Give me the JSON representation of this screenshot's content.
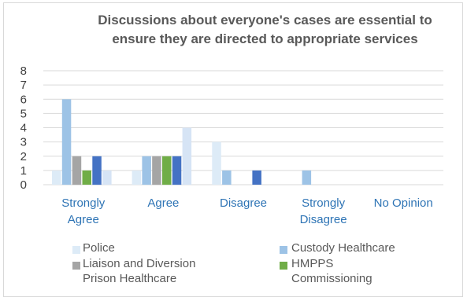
{
  "chart_data": {
    "type": "bar",
    "title_lines": [
      "Discussions about everyone's cases are essential to",
      "ensure they are directed to appropriate services"
    ],
    "categories_lines": [
      [
        "Strongly",
        "Agree"
      ],
      [
        "Agree"
      ],
      [
        "Disagree"
      ],
      [
        "Strongly",
        "Disagree"
      ],
      [
        "No Opinion"
      ]
    ],
    "ylim": [
      0,
      8
    ],
    "yticks": [
      0,
      1,
      2,
      3,
      4,
      5,
      6,
      7,
      8
    ],
    "grid": true,
    "legend_position": "bottom",
    "series": [
      {
        "name": "Police",
        "color": "#ddebf7",
        "values": [
          1,
          1,
          3,
          0,
          0
        ]
      },
      {
        "name": "Custody Healthcare",
        "color": "#9dc3e6",
        "values": [
          6,
          2,
          1,
          1,
          0
        ]
      },
      {
        "name": "Liaison and Diversion",
        "color": "#a5a5a5",
        "values": [
          2,
          2,
          0,
          0,
          0
        ]
      },
      {
        "name": "HMPPS",
        "color": "#70ad47",
        "values": [
          1,
          2,
          0,
          0,
          0
        ]
      },
      {
        "name": "Prison Healthcare",
        "color": "#4472c4",
        "values": [
          2,
          2,
          1,
          0,
          0
        ]
      },
      {
        "name": "Commissioning",
        "color": "#d6e4f5",
        "values": [
          1,
          4,
          0,
          0,
          0
        ]
      }
    ],
    "legend_items": [
      {
        "label_lines": [
          "Police"
        ],
        "color": "#ddebf7"
      },
      {
        "label_lines": [
          "Custody Healthcare"
        ],
        "color": "#9dc3e6"
      },
      {
        "label_lines": [
          "Liaison and Diversion",
          "Prison Healthcare"
        ],
        "color": "#a5a5a5"
      },
      {
        "label_lines": [
          "HMPPS",
          "Commissioning"
        ],
        "color": "#70ad47"
      }
    ]
  }
}
